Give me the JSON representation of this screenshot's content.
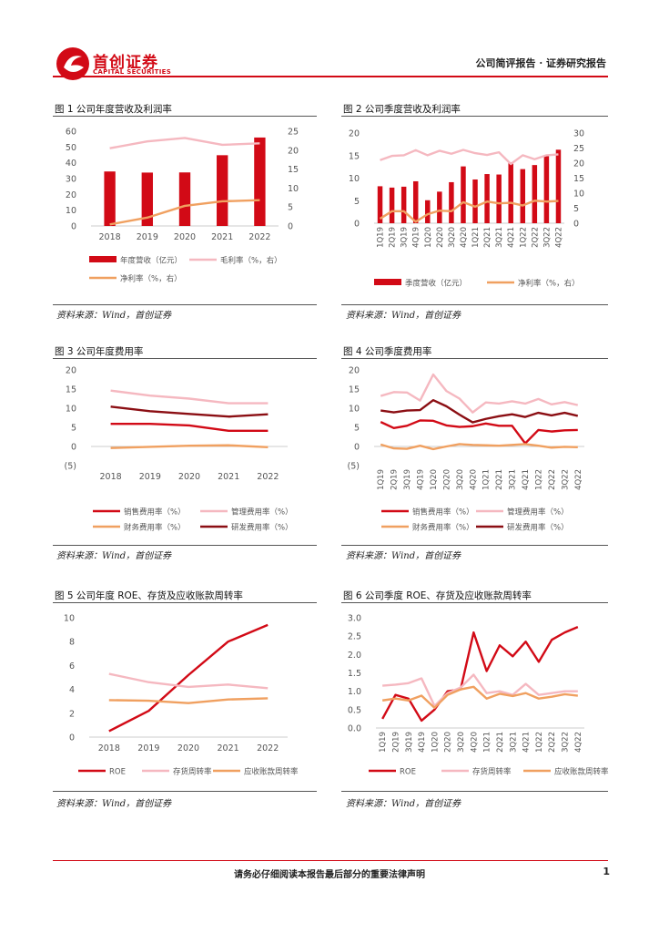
{
  "header": {
    "brand_cn": "首创证券",
    "brand_en": "CAPITAL SECURITIES",
    "report_type": "公司简评报告 · 证券研究报告",
    "colors": {
      "brand_red": "#d20a16"
    }
  },
  "source_text": "资料来源：Wind，首创证券",
  "footer": {
    "notice": "请务必仔细阅读本报告最后部分的重要法律声明",
    "page_number": "1"
  },
  "chart_data": [
    {
      "id": "fig1",
      "caption": "图 1 公司年度营收及利润率",
      "type": "bar",
      "categories": [
        "2018",
        "2019",
        "2020",
        "2021",
        "2022"
      ],
      "y_ticks": [
        "0",
        "10",
        "20",
        "30",
        "40",
        "50",
        "60"
      ],
      "y2_ticks": [
        "0",
        "5",
        "10",
        "15",
        "20",
        "25"
      ],
      "ylim": [
        0,
        60
      ],
      "y2lim": [
        0,
        25
      ],
      "series": [
        {
          "name": "年度营收（亿元）",
          "kind": "bar",
          "axis": "left",
          "color": "#d20a16",
          "values": [
            34.5,
            33.8,
            33.9,
            44.8,
            56
          ]
        },
        {
          "name": "毛利率（%，右）",
          "kind": "line",
          "axis": "right",
          "color": "#f5b8c0",
          "values": [
            20.5,
            22.3,
            23.2,
            21.4,
            21.8
          ]
        },
        {
          "name": "净利率（%，右）",
          "kind": "line",
          "axis": "right",
          "color": "#f0a060",
          "values": [
            0.4,
            2.2,
            5.3,
            6.5,
            6.8
          ]
        }
      ]
    },
    {
      "id": "fig2",
      "caption": "图 2 公司季度营收及利润率",
      "type": "bar",
      "categories": [
        "1Q19",
        "2Q19",
        "3Q19",
        "4Q19",
        "1Q20",
        "2Q20",
        "3Q20",
        "4Q20",
        "1Q21",
        "2Q21",
        "3Q21",
        "4Q21",
        "1Q22",
        "2Q22",
        "3Q22",
        "4Q22"
      ],
      "y_ticks": [
        "0",
        "5",
        "10",
        "15",
        "20"
      ],
      "y2_ticks": [
        "0",
        "5",
        "10",
        "15",
        "20",
        "25",
        "30"
      ],
      "ylim": [
        0,
        20
      ],
      "y2lim": [
        0,
        30
      ],
      "series": [
        {
          "name": "季度营收（亿元）",
          "kind": "bar",
          "axis": "left",
          "color": "#d20a16",
          "values": [
            8.2,
            7.9,
            8.1,
            9.3,
            5.1,
            7.0,
            9.1,
            12.6,
            9.7,
            10.9,
            10.8,
            13.5,
            12.0,
            12.9,
            14.9,
            16.3
          ]
        },
        {
          "name": "毛利率（%，右）",
          "kind": "line",
          "axis": "right",
          "color": "#f5b8c0",
          "values": [
            21,
            22.4,
            22.6,
            24.3,
            22.6,
            24.1,
            23.1,
            24.4,
            23.3,
            22.7,
            23.6,
            19.7,
            22.6,
            21.3,
            22.6,
            22.9
          ]
        },
        {
          "name": "净利率（%，右）",
          "kind": "line",
          "axis": "right",
          "color": "#f0a060",
          "values": [
            1.5,
            4.0,
            4.0,
            0.5,
            3.0,
            4.2,
            4.0,
            7.0,
            5.5,
            7.2,
            6.6,
            6.8,
            5.9,
            7.5,
            7.2,
            7.4
          ]
        }
      ]
    },
    {
      "id": "fig3",
      "caption": "图 3 公司年度费用率",
      "type": "line",
      "categories": [
        "2018",
        "2019",
        "2020",
        "2021",
        "2022"
      ],
      "y_ticks": [
        "(5)",
        "0",
        "5",
        "10",
        "15",
        "20"
      ],
      "ylim": [
        -5,
        20
      ],
      "series": [
        {
          "name": "销售费用率（%）",
          "color": "#d20a16",
          "values": [
            5.9,
            5.9,
            5.5,
            4.1,
            4.1
          ]
        },
        {
          "name": "管理费用率（%）",
          "color": "#f5b8c0",
          "values": [
            14.6,
            13.3,
            12.5,
            11.3,
            11.3
          ]
        },
        {
          "name": "财务费用率（%）",
          "color": "#f0a060",
          "values": [
            -0.4,
            -0.1,
            0.2,
            0.3,
            -0.2
          ]
        },
        {
          "name": "研发费用率（%）",
          "color": "#8b0e13",
          "values": [
            10.4,
            9.2,
            8.5,
            7.8,
            8.4
          ]
        }
      ]
    },
    {
      "id": "fig4",
      "caption": "图 4 公司季度费用率",
      "type": "line",
      "categories": [
        "1Q19",
        "2Q19",
        "3Q19",
        "4Q19",
        "1Q20",
        "2Q20",
        "3Q20",
        "4Q20",
        "1Q21",
        "2Q21",
        "3Q21",
        "4Q21",
        "1Q22",
        "2Q22",
        "3Q22",
        "4Q22"
      ],
      "y_ticks": [
        "(5)",
        "0",
        "5",
        "10",
        "15",
        "20"
      ],
      "ylim": [
        -5,
        20
      ],
      "series": [
        {
          "name": "销售费用率（%）",
          "color": "#d20a16",
          "values": [
            6.4,
            4.8,
            5.4,
            6.8,
            6.7,
            5.5,
            5.1,
            5.3,
            6.0,
            5.4,
            5.4,
            0.8,
            4.3,
            3.9,
            4.2,
            4.3
          ]
        },
        {
          "name": "管理费用率（%）",
          "color": "#f5b8c0",
          "values": [
            13.2,
            14.2,
            14.1,
            12.0,
            18.8,
            14.5,
            12.5,
            8.9,
            11.5,
            11.2,
            11.8,
            11.2,
            12.4,
            11.0,
            11.6,
            10.8
          ]
        },
        {
          "name": "财务费用率（%）",
          "color": "#f0a060",
          "values": [
            0.5,
            -0.5,
            -0.6,
            0.2,
            -0.7,
            0.0,
            0.6,
            0.4,
            0.3,
            0.2,
            0.4,
            0.6,
            0.2,
            -0.3,
            -0.1,
            -0.2
          ]
        },
        {
          "name": "研发费用率（%）",
          "color": "#8b0e13",
          "values": [
            9.4,
            8.9,
            9.4,
            9.5,
            12.1,
            10.5,
            8.3,
            6.3,
            7.2,
            7.9,
            8.4,
            7.7,
            8.8,
            8.1,
            8.8,
            8.0
          ]
        }
      ]
    },
    {
      "id": "fig5",
      "caption": "图 5 公司年度 ROE、存货及应收账款周转率",
      "type": "line",
      "categories": [
        "2018",
        "2019",
        "2020",
        "2021",
        "2022"
      ],
      "y_ticks": [
        "0",
        "2",
        "4",
        "6",
        "8",
        "10"
      ],
      "ylim": [
        0,
        10
      ],
      "series": [
        {
          "name": "ROE",
          "color": "#d20a16",
          "values": [
            0.5,
            2.2,
            5.2,
            8.0,
            9.4
          ]
        },
        {
          "name": "存货周转率",
          "color": "#f5b8c0",
          "values": [
            5.3,
            4.6,
            4.2,
            4.4,
            4.1
          ]
        },
        {
          "name": "应收账款周转率",
          "color": "#f0a060",
          "values": [
            3.1,
            3.05,
            2.85,
            3.15,
            3.25
          ]
        }
      ]
    },
    {
      "id": "fig6",
      "caption": "图 6 公司季度 ROE、存货及应收账款周转率",
      "type": "line",
      "categories": [
        "1Q19",
        "2Q19",
        "3Q19",
        "4Q19",
        "1Q20",
        "2Q20",
        "3Q20",
        "4Q20",
        "1Q21",
        "2Q21",
        "3Q21",
        "4Q21",
        "1Q22",
        "2Q22",
        "3Q22",
        "4Q22"
      ],
      "y_ticks": [
        "0.0",
        "0.5",
        "1.0",
        "1.5",
        "2.0",
        "2.5",
        "3.0"
      ],
      "ylim": [
        0,
        3
      ],
      "series": [
        {
          "name": "ROE",
          "color": "#d20a16",
          "values": [
            0.25,
            0.9,
            0.8,
            0.2,
            0.5,
            1.0,
            1.05,
            2.6,
            1.55,
            2.25,
            1.95,
            2.35,
            1.8,
            2.4,
            2.6,
            2.75
          ]
        },
        {
          "name": "存货周转率",
          "color": "#f5b8c0",
          "values": [
            1.15,
            1.18,
            1.22,
            1.35,
            0.6,
            0.95,
            1.1,
            1.45,
            0.95,
            1.0,
            0.9,
            1.2,
            0.9,
            0.95,
            1.0,
            1.0
          ]
        },
        {
          "name": "应收账款周转率",
          "color": "#f0a060",
          "values": [
            0.75,
            0.8,
            0.75,
            0.88,
            0.55,
            0.9,
            1.05,
            1.12,
            0.8,
            0.93,
            0.87,
            0.95,
            0.8,
            0.85,
            0.92,
            0.88
          ]
        }
      ]
    }
  ]
}
